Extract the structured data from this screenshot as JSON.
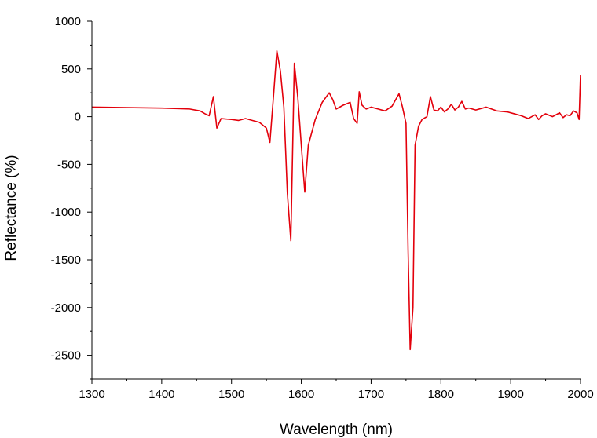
{
  "chart_data": {
    "type": "line",
    "xlabel": "Wavelength (nm)",
    "ylabel": "Reflectance (%)",
    "xlim": [
      1300,
      2000
    ],
    "ylim": [
      -2750,
      1000
    ],
    "xticks": [
      1300,
      1400,
      1500,
      1600,
      1700,
      1800,
      1900,
      2000
    ],
    "yticks": [
      1000,
      500,
      0,
      -500,
      -1000,
      -1500,
      -2000,
      -2500
    ],
    "grid": false,
    "legend": "none",
    "colors": {
      "series": "#e3000b",
      "axis": "#000000"
    },
    "series": [
      {
        "x": [
          1300,
          1350,
          1400,
          1440,
          1455,
          1462,
          1468,
          1474,
          1479,
          1485,
          1500,
          1510,
          1520,
          1530,
          1540,
          1550,
          1555,
          1560,
          1565,
          1570,
          1575,
          1580,
          1585,
          1590,
          1595,
          1600,
          1605,
          1610,
          1620,
          1630,
          1640,
          1645,
          1650,
          1660,
          1670,
          1675,
          1680,
          1683,
          1687,
          1693,
          1700,
          1710,
          1720,
          1730,
          1740,
          1745,
          1750,
          1753,
          1756,
          1760,
          1763,
          1768,
          1773,
          1780,
          1785,
          1790,
          1795,
          1800,
          1805,
          1810,
          1815,
          1820,
          1825,
          1830,
          1835,
          1840,
          1850,
          1865,
          1880,
          1895,
          1905,
          1915,
          1925,
          1935,
          1940,
          1945,
          1950,
          1960,
          1970,
          1975,
          1980,
          1985,
          1990,
          1995,
          1998,
          2000
        ],
        "y": [
          100,
          95,
          90,
          80,
          60,
          30,
          10,
          210,
          -120,
          -20,
          -30,
          -40,
          -20,
          -40,
          -60,
          -120,
          -270,
          200,
          690,
          480,
          100,
          -800,
          -1300,
          560,
          200,
          -300,
          -790,
          -300,
          -30,
          150,
          250,
          180,
          80,
          120,
          150,
          -20,
          -70,
          260,
          120,
          80,
          100,
          80,
          60,
          110,
          240,
          100,
          -70,
          -1400,
          -2440,
          -2000,
          -300,
          -100,
          -30,
          0,
          210,
          70,
          60,
          100,
          50,
          80,
          130,
          70,
          100,
          160,
          80,
          90,
          70,
          100,
          60,
          50,
          30,
          10,
          -20,
          20,
          -30,
          10,
          30,
          0,
          40,
          -10,
          20,
          10,
          60,
          40,
          -30,
          440
        ]
      }
    ]
  }
}
